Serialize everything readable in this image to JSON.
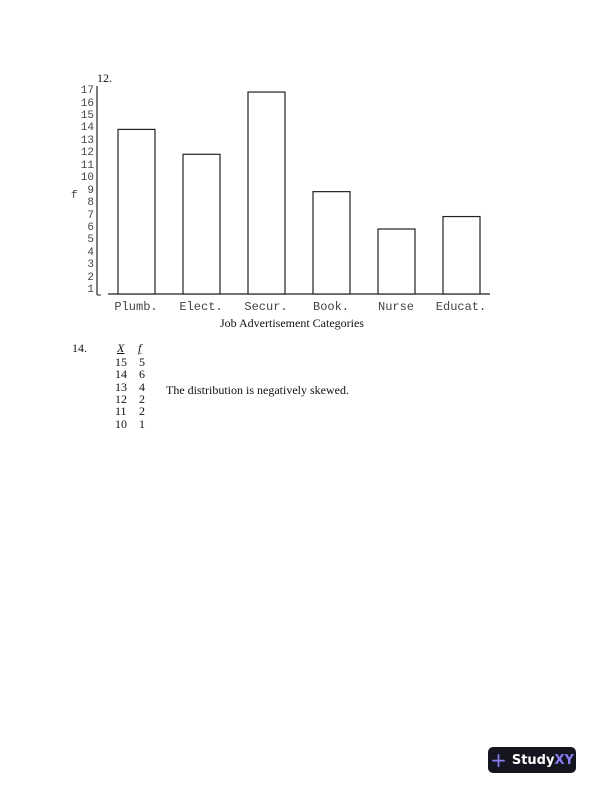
{
  "problem12": {
    "number": "12."
  },
  "chart_data": {
    "type": "bar",
    "categories": [
      "Plumb.",
      "Elect.",
      "Secur.",
      "Book.",
      "Nurse",
      "Educat."
    ],
    "values": [
      14,
      12,
      17,
      9,
      6,
      7
    ],
    "xlabel": "Job Advertisement Categories",
    "ylabel": "f",
    "yticks": [
      1,
      2,
      3,
      4,
      5,
      6,
      7,
      8,
      9,
      10,
      11,
      12,
      13,
      14,
      15,
      16,
      17
    ],
    "ylim": [
      0,
      17
    ],
    "grid": false
  },
  "problem14": {
    "number": "14.",
    "headers": [
      "X",
      "f"
    ],
    "rows": [
      [
        "15",
        "5"
      ],
      [
        "14",
        "6"
      ],
      [
        "13",
        "4"
      ],
      [
        "12",
        "2"
      ],
      [
        "11",
        "2"
      ],
      [
        "10",
        "1"
      ]
    ],
    "note": "The distribution is negatively skewed."
  },
  "logo": {
    "text_a": "Study",
    "text_b": "XY",
    "accent": "#8b7cf6"
  }
}
